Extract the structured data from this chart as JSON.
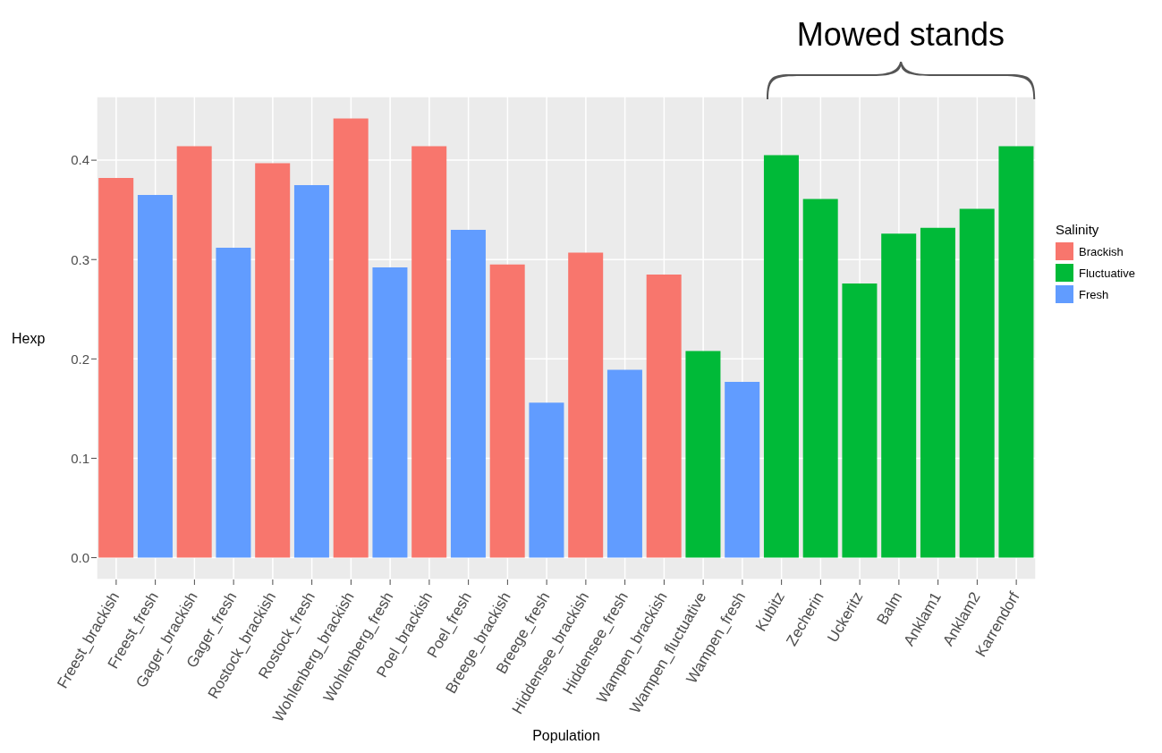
{
  "chart_data": {
    "type": "bar",
    "xlabel": "Population",
    "ylabel": "Hexp",
    "legend_title": "Salinity",
    "legend": "right",
    "categories": [
      "Freest_brackish",
      "Freest_fresh",
      "Gager_brackish",
      "Gager_fresh",
      "Rostock_brackish",
      "Rostock_fresh",
      "Wohlenberg_brackish",
      "Wohlenberg_fresh",
      "Poel_brackish",
      "Poel_fresh",
      "Breege_brackish",
      "Breege_fresh",
      "Hiddensee_brackish",
      "Hiddensee_fresh",
      "Wampen_brackish",
      "Wampen_fluctuative",
      "Wampen_fresh",
      "Kubitz",
      "Zecherin",
      "Uckeritz",
      "Balm",
      "Anklam1",
      "Anklam2",
      "Karrendorf"
    ],
    "series": [
      {
        "name": "Brackish",
        "color": "#f8766d",
        "values": [
          0.382,
          null,
          0.414,
          null,
          0.397,
          null,
          0.442,
          null,
          0.414,
          null,
          0.295,
          null,
          0.307,
          null,
          0.285,
          null,
          null,
          null,
          null,
          null,
          null,
          null,
          null,
          null
        ]
      },
      {
        "name": "Fluctuative",
        "color": "#00ba38",
        "values": [
          null,
          null,
          null,
          null,
          null,
          null,
          null,
          null,
          null,
          null,
          null,
          null,
          null,
          null,
          null,
          0.208,
          null,
          0.405,
          0.361,
          0.276,
          0.326,
          0.332,
          0.351,
          0.414
        ]
      },
      {
        "name": "Fresh",
        "color": "#619cff",
        "values": [
          null,
          0.365,
          null,
          0.312,
          null,
          0.375,
          null,
          0.292,
          null,
          0.33,
          null,
          0.156,
          null,
          0.189,
          null,
          null,
          0.177,
          null,
          null,
          null,
          null,
          null,
          null,
          null
        ]
      }
    ],
    "ylim": [
      -0.022,
      0.464
    ],
    "yticks": [
      {
        "value": 0,
        "label": "0.0"
      },
      {
        "value": 0.1,
        "label": "0.1"
      },
      {
        "value": 0.2,
        "label": "0.2"
      },
      {
        "value": 0.3,
        "label": "0.3"
      },
      {
        "value": 0.4,
        "label": "0.4"
      }
    ],
    "grid": true,
    "annotations": [
      "Mowed stands"
    ]
  }
}
